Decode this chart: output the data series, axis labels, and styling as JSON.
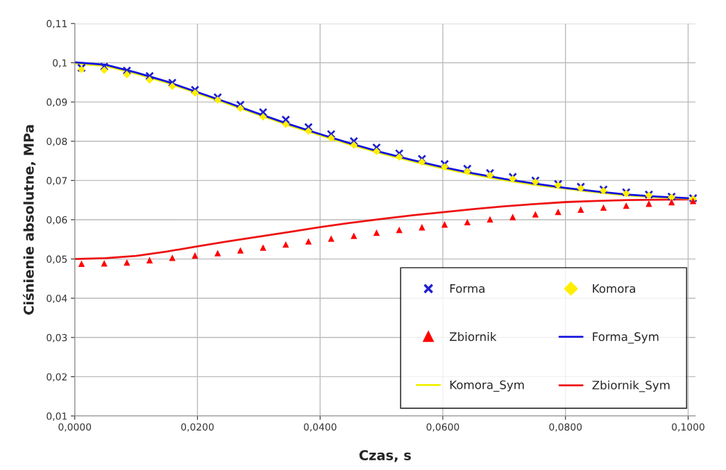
{
  "chart_data": {
    "type": "scatter",
    "xlabel": "Czas, s",
    "ylabel": "Ciśnienie absolutne, MPa",
    "xlim": [
      0,
      0.1012
    ],
    "ylim": [
      0.01,
      0.11
    ],
    "xticks": [
      {
        "value": 0,
        "label": "0,0000"
      },
      {
        "value": 0.02,
        "label": "0,0200"
      },
      {
        "value": 0.04,
        "label": "0,0400"
      },
      {
        "value": 0.06,
        "label": "0,0600"
      },
      {
        "value": 0.08,
        "label": "0,0800"
      },
      {
        "value": 0.1,
        "label": "0,1000"
      }
    ],
    "yticks": [
      {
        "value": 0.01,
        "label": "0,01"
      },
      {
        "value": 0.02,
        "label": "0,02"
      },
      {
        "value": 0.03,
        "label": "0,03"
      },
      {
        "value": 0.04,
        "label": "0,04"
      },
      {
        "value": 0.05,
        "label": "0,05"
      },
      {
        "value": 0.06,
        "label": "0,06"
      },
      {
        "value": 0.07,
        "label": "0,07"
      },
      {
        "value": 0.08,
        "label": "0,08"
      },
      {
        "value": 0.09,
        "label": "0,09"
      },
      {
        "value": 0.1,
        "label": "0,1"
      },
      {
        "value": 0.11,
        "label": "0,11"
      }
    ],
    "grid": true,
    "legend": "bottom right",
    "x": [
      0.0011,
      0.0048,
      0.0085,
      0.0122,
      0.0159,
      0.0196,
      0.0233,
      0.027,
      0.0307,
      0.0344,
      0.0381,
      0.0418,
      0.0455,
      0.0492,
      0.0529,
      0.0566,
      0.0603,
      0.064,
      0.0677,
      0.0714,
      0.0751,
      0.0788,
      0.0825,
      0.0862,
      0.0899,
      0.0936,
      0.0973,
      0.1008
    ],
    "series": [
      {
        "name": "Forma",
        "marker": "cross",
        "color": "#2020d0",
        "values": [
          0.0987,
          0.099,
          0.098,
          0.0966,
          0.0949,
          0.0931,
          0.0912,
          0.0893,
          0.0874,
          0.0855,
          0.0836,
          0.0818,
          0.08,
          0.0784,
          0.0769,
          0.0755,
          0.0742,
          0.073,
          0.0719,
          0.0709,
          0.07,
          0.0691,
          0.0684,
          0.0677,
          0.067,
          0.0664,
          0.0659,
          0.0655
        ]
      },
      {
        "name": "Komora",
        "marker": "diamond",
        "color": "#ffee00",
        "values": [
          0.0983,
          0.0981,
          0.097,
          0.0956,
          0.094,
          0.0923,
          0.0905,
          0.0884,
          0.0862,
          0.0843,
          0.0826,
          0.0808,
          0.079,
          0.0774,
          0.076,
          0.0747,
          0.0735,
          0.0723,
          0.0713,
          0.0704,
          0.0696,
          0.0688,
          0.068,
          0.0674,
          0.0667,
          0.0662,
          0.0657,
          0.0653
        ]
      },
      {
        "name": "Zbiornik",
        "marker": "triangle",
        "color": "#ff0000",
        "values": [
          0.0488,
          0.0489,
          0.0491,
          0.0497,
          0.0503,
          0.0509,
          0.0515,
          0.0522,
          0.0529,
          0.0537,
          0.0545,
          0.0552,
          0.0559,
          0.0567,
          0.0574,
          0.0581,
          0.0588,
          0.0594,
          0.0601,
          0.0607,
          0.0614,
          0.062,
          0.0626,
          0.0631,
          0.0636,
          0.0641,
          0.0645,
          0.0648
        ]
      },
      {
        "name": "Forma_Sym",
        "type": "line",
        "color": "#1010e0",
        "x": [
          0,
          0.005,
          0.01,
          0.015,
          0.02,
          0.025,
          0.03,
          0.035,
          0.04,
          0.045,
          0.05,
          0.055,
          0.06,
          0.065,
          0.07,
          0.075,
          0.08,
          0.085,
          0.09,
          0.095,
          0.1
        ],
        "values": [
          0.1001,
          0.0995,
          0.0975,
          0.0952,
          0.0925,
          0.0898,
          0.087,
          0.0843,
          0.0818,
          0.0794,
          0.0772,
          0.0752,
          0.0734,
          0.0718,
          0.0704,
          0.0692,
          0.0681,
          0.0672,
          0.0664,
          0.0659,
          0.0655
        ]
      },
      {
        "name": "Komora_Sym",
        "type": "line",
        "color": "#f0f000",
        "x": [
          0,
          0.005,
          0.01,
          0.015,
          0.02,
          0.025,
          0.03,
          0.035,
          0.04,
          0.045,
          0.05,
          0.055,
          0.06,
          0.065,
          0.07,
          0.075,
          0.08,
          0.085,
          0.09,
          0.095,
          0.1
        ],
        "values": [
          0.0998,
          0.0992,
          0.0972,
          0.0949,
          0.0922,
          0.0895,
          0.0867,
          0.084,
          0.0815,
          0.0791,
          0.0769,
          0.0749,
          0.0731,
          0.0715,
          0.0701,
          0.0689,
          0.0679,
          0.067,
          0.0662,
          0.0657,
          0.0654
        ]
      },
      {
        "name": "Zbiornik_Sym",
        "type": "line",
        "color": "#ee1111",
        "x": [
          0,
          0.005,
          0.01,
          0.015,
          0.02,
          0.025,
          0.03,
          0.035,
          0.04,
          0.045,
          0.05,
          0.055,
          0.06,
          0.065,
          0.07,
          0.075,
          0.08,
          0.085,
          0.09,
          0.095,
          0.1
        ],
        "values": [
          0.05,
          0.0502,
          0.0508,
          0.0519,
          0.0532,
          0.0545,
          0.0557,
          0.0569,
          0.0581,
          0.0592,
          0.0602,
          0.0611,
          0.0619,
          0.0627,
          0.0634,
          0.064,
          0.0645,
          0.0648,
          0.065,
          0.0651,
          0.0652
        ]
      }
    ]
  }
}
